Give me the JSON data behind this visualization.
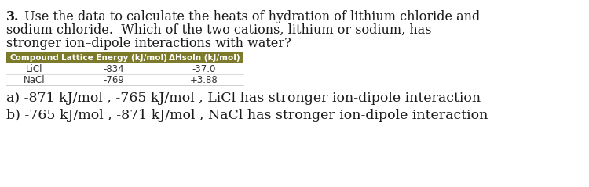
{
  "question_number": "3.",
  "question_line1": " Use the data to calculate the heats of hydration of lithium chloride and",
  "question_line2": "sodium chloride.  Which of the two cations, lithium or sodium, has",
  "question_line3": "stronger ion–dipole interactions with water?",
  "table_header": [
    "Compound",
    "Lattice Energy (kJ/mol)",
    "ΔHsoln (kJ/mol)"
  ],
  "table_rows": [
    [
      "LiCl",
      "-834",
      "-37.0"
    ],
    [
      "NaCl",
      "-769",
      "+3.88"
    ]
  ],
  "table_header_bg": "#7b7b2b",
  "table_header_color": "#ffffff",
  "answer_a": "a) -871 kJ/mol , -765 kJ/mol , LiCl has stronger ion-dipole interaction",
  "answer_b": "b) -765 kJ/mol , -871 kJ/mol , NaCl has stronger ion-dipole interaction",
  "background_color": "#ffffff",
  "text_color": "#1a1a1a",
  "row_bg": "#ffffff",
  "row_text_color": "#333333",
  "font_size_question": 11.5,
  "font_size_table_header": 7.5,
  "font_size_table_data": 8.5,
  "font_size_answers": 12.5
}
